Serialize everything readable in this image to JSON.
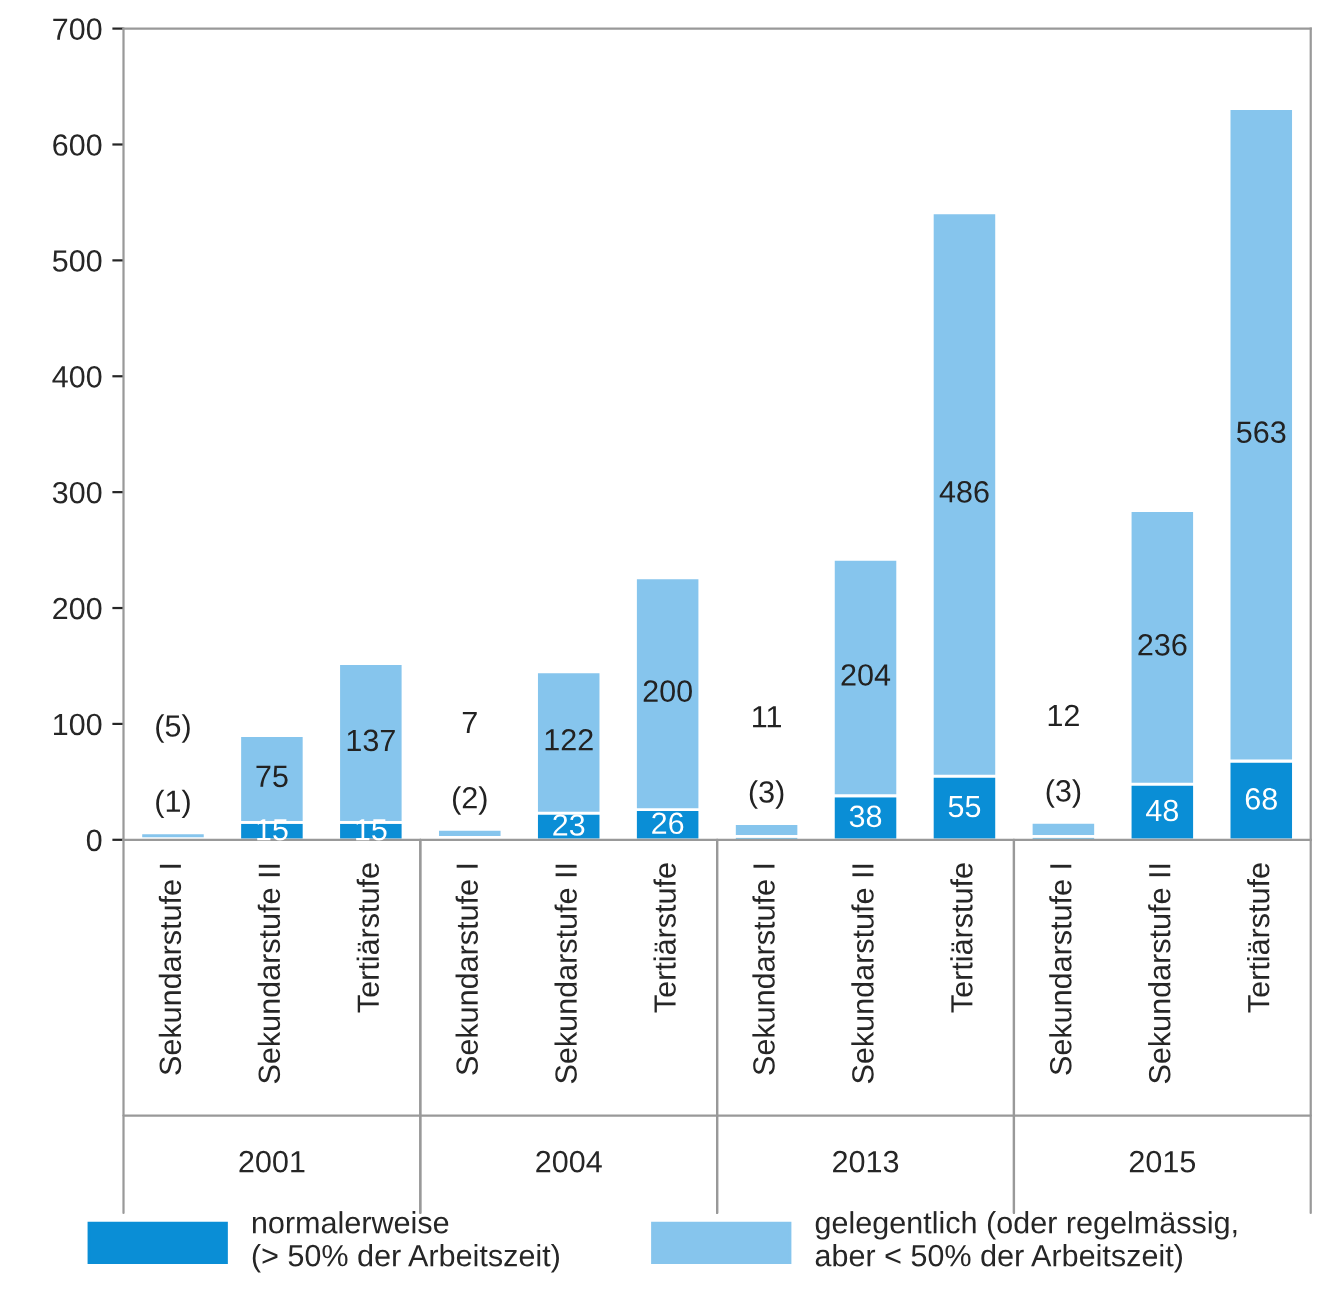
{
  "chart_data": {
    "type": "bar",
    "stacked": true,
    "categories": [
      "Sekundarstufe I",
      "Sekundarstufe II",
      "Tertiärstufe",
      "Sekundarstufe I",
      "Sekundarstufe II",
      "Tertiärstufe",
      "Sekundarstufe I",
      "Sekundarstufe II",
      "Tertiärstufe",
      "Sekundarstufe I",
      "Sekundarstufe II",
      "Tertiärstufe"
    ],
    "series": [
      {
        "name": "normalerweise\n(> 50% der Arbeitszeit)",
        "color": "#0a8ed6",
        "values": [
          1,
          15,
          15,
          2,
          23,
          26,
          3,
          38,
          55,
          3,
          48,
          68
        ],
        "value_labels": [
          "(1)",
          "15",
          "15",
          "(2)",
          "23",
          "26",
          "(3)",
          "38",
          "55",
          "(3)",
          "48",
          "68"
        ]
      },
      {
        "name": "gelegentlich (oder regelmässig,\naber < 50% der Arbeitszeit)",
        "color": "#86c5ed",
        "values": [
          5,
          75,
          137,
          7,
          122,
          200,
          11,
          204,
          486,
          12,
          236,
          563
        ],
        "value_labels": [
          "(5)",
          "75",
          "137",
          "7",
          "122",
          "200",
          "11",
          "204",
          "486",
          "12",
          "236",
          "563"
        ]
      }
    ],
    "annotations": [
      "2001",
      "2004",
      "2013",
      "2015"
    ],
    "ylim": [
      0,
      700
    ],
    "yticks": [
      0,
      100,
      200,
      300,
      400,
      500,
      600,
      700
    ],
    "legend": "bottom"
  }
}
